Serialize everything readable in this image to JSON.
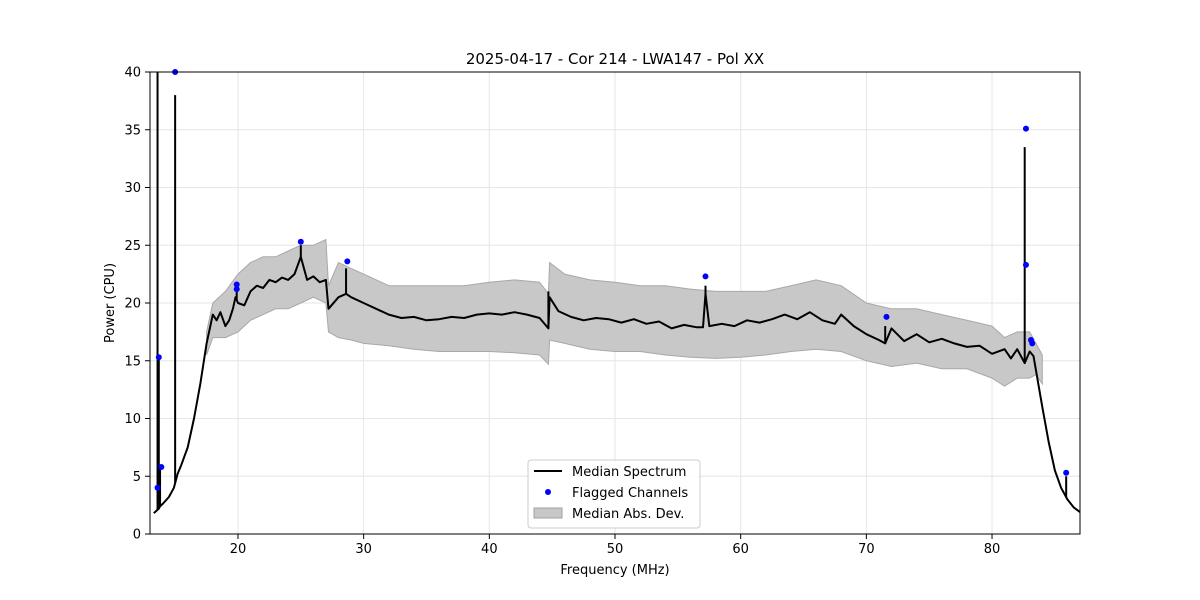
{
  "chart_data": {
    "type": "line",
    "title": "2025-04-17 - Cor 214 - LWA147 - Pol XX",
    "xlabel": "Frequency (MHz)",
    "ylabel": "Power (CPU)",
    "xlim": [
      13,
      87
    ],
    "ylim": [
      0,
      40
    ],
    "grid": true,
    "legend_position": "bottom-center",
    "x_ticks": [
      20,
      30,
      40,
      50,
      60,
      70,
      80
    ],
    "y_ticks": [
      0,
      5,
      10,
      15,
      20,
      25,
      30,
      35,
      40
    ],
    "x_tick_labels": [
      "20",
      "30",
      "40",
      "50",
      "60",
      "70",
      "80"
    ],
    "y_tick_labels": [
      "0",
      "5",
      "10",
      "15",
      "20",
      "25",
      "30",
      "35",
      "40"
    ],
    "series": [
      {
        "name": "Median Spectrum",
        "kind": "line",
        "color": "#000000",
        "x": [
          13.3,
          13.5,
          13.7,
          13.8,
          14.0,
          14.5,
          14.9,
          15.2,
          15.5,
          16.0,
          16.5,
          17.0,
          17.5,
          18.0,
          18.3,
          18.6,
          19.0,
          19.3,
          19.6,
          19.8,
          20.0,
          20.5,
          21.0,
          21.5,
          22.0,
          22.5,
          23.0,
          23.5,
          24.0,
          24.5,
          25.0,
          25.5,
          26.0,
          26.5,
          27.0,
          27.2,
          28.0,
          28.6,
          29.0,
          30.0,
          31.0,
          32.0,
          33.0,
          34.0,
          35.0,
          36.0,
          37.0,
          38.0,
          39.0,
          40.0,
          41.0,
          42.0,
          43.0,
          44.0,
          44.7,
          44.8,
          45.5,
          46.5,
          47.5,
          48.5,
          49.5,
          50.5,
          51.5,
          52.5,
          53.5,
          54.5,
          55.5,
          56.5,
          57.0,
          57.2,
          57.5,
          58.5,
          59.5,
          60.5,
          61.5,
          62.5,
          63.5,
          64.5,
          65.5,
          66.5,
          67.5,
          68.0,
          69.0,
          70.0,
          71.0,
          71.5,
          72.0,
          73.0,
          74.0,
          75.0,
          76.0,
          77.0,
          78.0,
          79.0,
          80.0,
          81.0,
          81.5,
          82.0,
          82.6,
          83.0,
          83.3,
          83.6,
          84.0,
          84.5,
          85.0,
          85.5,
          86.0,
          86.5,
          87.0
        ],
        "y": [
          1.8,
          2.0,
          2.2,
          2.4,
          2.6,
          3.2,
          4.0,
          5.2,
          6.0,
          7.5,
          10.0,
          13.0,
          16.5,
          19.0,
          18.5,
          19.2,
          18.0,
          18.5,
          19.5,
          20.5,
          20.0,
          19.8,
          21.0,
          21.5,
          21.3,
          22.0,
          21.8,
          22.2,
          22.0,
          22.5,
          24.0,
          22.0,
          22.3,
          21.8,
          22.0,
          19.5,
          20.5,
          20.8,
          20.5,
          20.0,
          19.5,
          19.0,
          18.7,
          18.8,
          18.5,
          18.6,
          18.8,
          18.7,
          19.0,
          19.1,
          19.0,
          19.2,
          19.0,
          18.7,
          17.8,
          20.5,
          19.3,
          18.8,
          18.5,
          18.7,
          18.6,
          18.3,
          18.6,
          18.2,
          18.4,
          17.8,
          18.1,
          17.9,
          17.9,
          20.8,
          18.0,
          18.2,
          18.0,
          18.5,
          18.3,
          18.6,
          19.0,
          18.6,
          19.2,
          18.5,
          18.2,
          19.0,
          18.0,
          17.3,
          16.8,
          16.5,
          17.8,
          16.7,
          17.3,
          16.6,
          16.9,
          16.5,
          16.2,
          16.3,
          15.6,
          16.0,
          15.2,
          16.0,
          14.8,
          15.8,
          15.4,
          13.5,
          11.0,
          8.0,
          5.5,
          4.0,
          3.0,
          2.3,
          1.9
        ],
        "spikes": [
          {
            "x": 13.6,
            "y": 40.0
          },
          {
            "x": 13.7,
            "y": 15.3
          },
          {
            "x": 13.8,
            "y": 5.8
          },
          {
            "x": 15.0,
            "y": 38.0
          },
          {
            "x": 19.9,
            "y": 21.5
          },
          {
            "x": 25.0,
            "y": 25.0
          },
          {
            "x": 28.6,
            "y": 23.0
          },
          {
            "x": 44.7,
            "y": 21.0
          },
          {
            "x": 57.2,
            "y": 21.5
          },
          {
            "x": 71.5,
            "y": 18.0
          },
          {
            "x": 82.6,
            "y": 33.5
          },
          {
            "x": 85.9,
            "y": 5.0
          }
        ]
      },
      {
        "name": "Flagged Channels",
        "kind": "scatter",
        "color": "#0000ff",
        "points": [
          {
            "x": 13.6,
            "y": 4.0
          },
          {
            "x": 13.7,
            "y": 15.3
          },
          {
            "x": 13.9,
            "y": 5.8
          },
          {
            "x": 15.0,
            "y": 40.0
          },
          {
            "x": 19.9,
            "y": 21.6
          },
          {
            "x": 19.9,
            "y": 21.2
          },
          {
            "x": 25.0,
            "y": 25.3
          },
          {
            "x": 28.7,
            "y": 23.6
          },
          {
            "x": 57.2,
            "y": 22.3
          },
          {
            "x": 71.6,
            "y": 18.8
          },
          {
            "x": 82.7,
            "y": 35.1
          },
          {
            "x": 82.7,
            "y": 23.3
          },
          {
            "x": 83.1,
            "y": 16.8
          },
          {
            "x": 83.2,
            "y": 16.5
          },
          {
            "x": 85.9,
            "y": 5.3
          }
        ]
      },
      {
        "name": "Median Abs. Dev.",
        "kind": "band",
        "color": "#c8c8c8",
        "x": [
          17.5,
          18.0,
          19.0,
          20.0,
          21.0,
          22.0,
          23.0,
          24.0,
          25.0,
          26.0,
          27.0,
          27.2,
          28.0,
          29.0,
          30.0,
          32.0,
          34.0,
          36.0,
          38.0,
          40.0,
          42.0,
          44.0,
          44.7,
          44.8,
          46.0,
          48.0,
          50.0,
          52.0,
          54.0,
          56.0,
          58.0,
          60.0,
          62.0,
          64.0,
          66.0,
          68.0,
          70.0,
          72.0,
          74.0,
          76.0,
          78.0,
          80.0,
          81.0,
          82.0,
          83.0,
          83.5,
          84.0
        ],
        "lower": [
          15.5,
          17.0,
          17.0,
          17.5,
          18.5,
          19.0,
          19.5,
          19.5,
          20.0,
          20.5,
          20.0,
          17.5,
          17.0,
          16.8,
          16.5,
          16.3,
          16.0,
          15.8,
          15.8,
          15.8,
          15.7,
          15.5,
          14.7,
          16.8,
          16.5,
          16.0,
          15.8,
          15.8,
          15.5,
          15.3,
          15.2,
          15.3,
          15.5,
          15.8,
          16.0,
          15.8,
          15.0,
          14.5,
          14.8,
          14.3,
          14.3,
          13.5,
          12.8,
          13.5,
          13.5,
          13.8,
          13.0
        ],
        "upper": [
          17.5,
          20.0,
          21.0,
          22.5,
          23.5,
          24.0,
          24.0,
          24.5,
          25.0,
          25.0,
          25.5,
          21.5,
          23.5,
          23.0,
          22.5,
          21.5,
          21.5,
          21.5,
          21.5,
          21.8,
          22.0,
          21.8,
          20.8,
          23.5,
          22.5,
          22.0,
          21.8,
          21.5,
          21.5,
          21.2,
          21.0,
          21.0,
          21.0,
          21.5,
          22.0,
          21.5,
          20.0,
          19.5,
          19.5,
          19.0,
          18.5,
          18.0,
          17.0,
          17.5,
          17.5,
          16.5,
          15.5
        ]
      }
    ]
  },
  "legend": {
    "items": [
      {
        "label": "Median Spectrum",
        "kind": "line",
        "color": "#000000"
      },
      {
        "label": "Flagged Channels",
        "kind": "dot",
        "color": "#0000ff"
      },
      {
        "label": "Median Abs. Dev.",
        "kind": "patch",
        "color": "#c8c8c8"
      }
    ]
  }
}
